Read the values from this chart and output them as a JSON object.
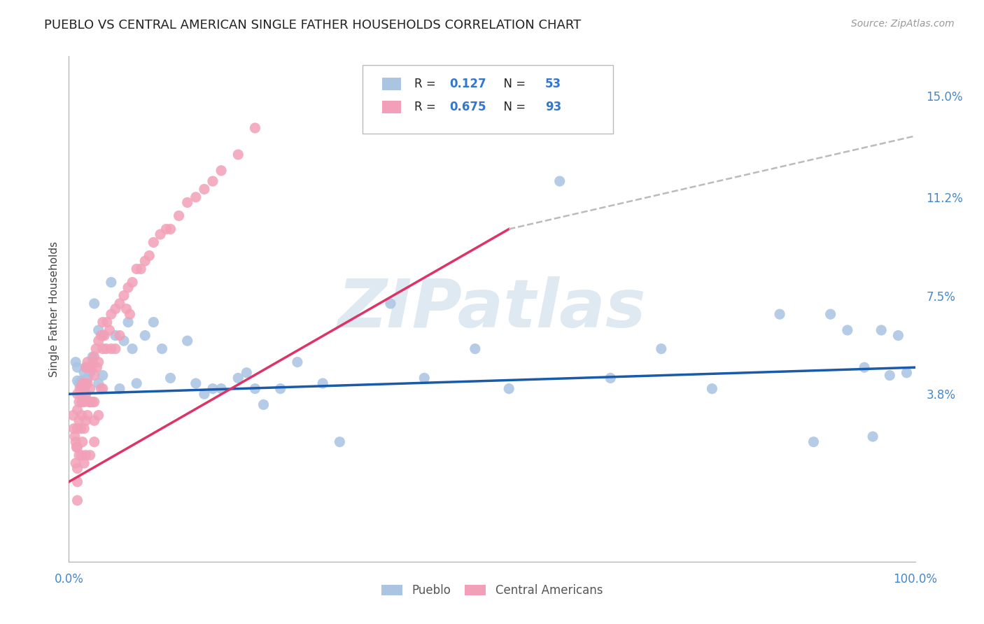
{
  "title": "PUEBLO VS CENTRAL AMERICAN SINGLE FATHER HOUSEHOLDS CORRELATION CHART",
  "source": "Source: ZipAtlas.com",
  "ylabel": "Single Father Households",
  "watermark": "ZIPatlas",
  "xlim": [
    0,
    1.0
  ],
  "ylim": [
    -0.025,
    0.165
  ],
  "ytick_right_vals": [
    0.038,
    0.075,
    0.112,
    0.15
  ],
  "ytick_right_labels": [
    "3.8%",
    "7.5%",
    "11.2%",
    "15.0%"
  ],
  "legend_pueblo_R": "0.127",
  "legend_pueblo_N": "53",
  "legend_ca_R": "0.675",
  "legend_ca_N": "93",
  "pueblo_color": "#aac4e2",
  "ca_color": "#f2a0b8",
  "pueblo_line_color": "#1a5aaa",
  "ca_line_color": "#dd3366",
  "trend_dash_color": "#bbbbbb",
  "background_color": "#ffffff",
  "grid_color": "#d8d8d8",
  "title_color": "#222222",
  "pueblo_scatter_x": [
    0.008,
    0.01,
    0.01,
    0.012,
    0.015,
    0.015,
    0.018,
    0.018,
    0.02,
    0.02,
    0.022,
    0.022,
    0.025,
    0.025,
    0.028,
    0.03,
    0.035,
    0.035,
    0.04,
    0.04,
    0.05,
    0.055,
    0.06,
    0.065,
    0.07,
    0.075,
    0.08,
    0.09,
    0.1,
    0.11,
    0.12,
    0.14,
    0.15,
    0.16,
    0.17,
    0.18,
    0.2,
    0.21,
    0.22,
    0.23,
    0.25,
    0.27,
    0.3,
    0.32,
    0.38,
    0.42,
    0.48,
    0.52,
    0.58,
    0.64,
    0.7,
    0.76,
    0.84
  ],
  "pueblo_scatter_y": [
    0.05,
    0.048,
    0.043,
    0.042,
    0.043,
    0.035,
    0.046,
    0.04,
    0.048,
    0.038,
    0.048,
    0.044,
    0.046,
    0.035,
    0.052,
    0.072,
    0.042,
    0.062,
    0.06,
    0.045,
    0.08,
    0.06,
    0.04,
    0.058,
    0.065,
    0.055,
    0.042,
    0.06,
    0.065,
    0.055,
    0.044,
    0.058,
    0.042,
    0.038,
    0.04,
    0.04,
    0.044,
    0.046,
    0.04,
    0.034,
    0.04,
    0.05,
    0.042,
    0.02,
    0.072,
    0.044,
    0.055,
    0.04,
    0.118,
    0.044,
    0.055,
    0.04,
    0.068
  ],
  "pueblo_scatter_x2": [
    0.88,
    0.9,
    0.92,
    0.94,
    0.95,
    0.96,
    0.97,
    0.98,
    0.99
  ],
  "pueblo_scatter_y2": [
    0.02,
    0.068,
    0.062,
    0.048,
    0.022,
    0.062,
    0.045,
    0.06,
    0.046
  ],
  "ca_scatter_x": [
    0.005,
    0.006,
    0.007,
    0.008,
    0.008,
    0.009,
    0.01,
    0.01,
    0.01,
    0.01,
    0.01,
    0.01,
    0.01,
    0.012,
    0.012,
    0.012,
    0.013,
    0.014,
    0.014,
    0.015,
    0.015,
    0.015,
    0.016,
    0.016,
    0.016,
    0.017,
    0.018,
    0.018,
    0.018,
    0.018,
    0.02,
    0.02,
    0.02,
    0.02,
    0.02,
    0.022,
    0.022,
    0.022,
    0.023,
    0.024,
    0.025,
    0.025,
    0.025,
    0.025,
    0.027,
    0.028,
    0.028,
    0.03,
    0.03,
    0.03,
    0.03,
    0.03,
    0.032,
    0.033,
    0.035,
    0.035,
    0.035,
    0.038,
    0.038,
    0.04,
    0.04,
    0.04,
    0.042,
    0.044,
    0.045,
    0.048,
    0.05,
    0.05,
    0.055,
    0.055,
    0.06,
    0.06,
    0.065,
    0.068,
    0.07,
    0.072,
    0.075,
    0.08,
    0.085,
    0.09,
    0.095,
    0.1,
    0.108,
    0.115,
    0.12,
    0.13,
    0.14,
    0.15,
    0.16,
    0.17,
    0.18,
    0.2,
    0.22
  ],
  "ca_scatter_y": [
    0.03,
    0.025,
    0.022,
    0.02,
    0.012,
    0.018,
    0.038,
    0.032,
    0.025,
    0.018,
    0.01,
    0.005,
    -0.002,
    0.035,
    0.028,
    0.015,
    0.04,
    0.038,
    0.025,
    0.04,
    0.03,
    0.015,
    0.042,
    0.035,
    0.02,
    0.04,
    0.042,
    0.035,
    0.025,
    0.012,
    0.048,
    0.042,
    0.038,
    0.028,
    0.015,
    0.05,
    0.042,
    0.03,
    0.048,
    0.035,
    0.048,
    0.04,
    0.035,
    0.015,
    0.048,
    0.05,
    0.035,
    0.052,
    0.045,
    0.035,
    0.028,
    0.02,
    0.055,
    0.048,
    0.058,
    0.05,
    0.03,
    0.06,
    0.04,
    0.065,
    0.055,
    0.04,
    0.06,
    0.055,
    0.065,
    0.062,
    0.068,
    0.055,
    0.07,
    0.055,
    0.072,
    0.06,
    0.075,
    0.07,
    0.078,
    0.068,
    0.08,
    0.085,
    0.085,
    0.088,
    0.09,
    0.095,
    0.098,
    0.1,
    0.1,
    0.105,
    0.11,
    0.112,
    0.115,
    0.118,
    0.122,
    0.128,
    0.138
  ],
  "pueblo_trend_x": [
    0.0,
    1.0
  ],
  "pueblo_trend_y": [
    0.038,
    0.048
  ],
  "ca_trend_x": [
    0.0,
    0.52
  ],
  "ca_trend_y": [
    0.005,
    0.1
  ],
  "dash_trend_x": [
    0.52,
    1.0
  ],
  "dash_trend_y": [
    0.1,
    0.135
  ]
}
